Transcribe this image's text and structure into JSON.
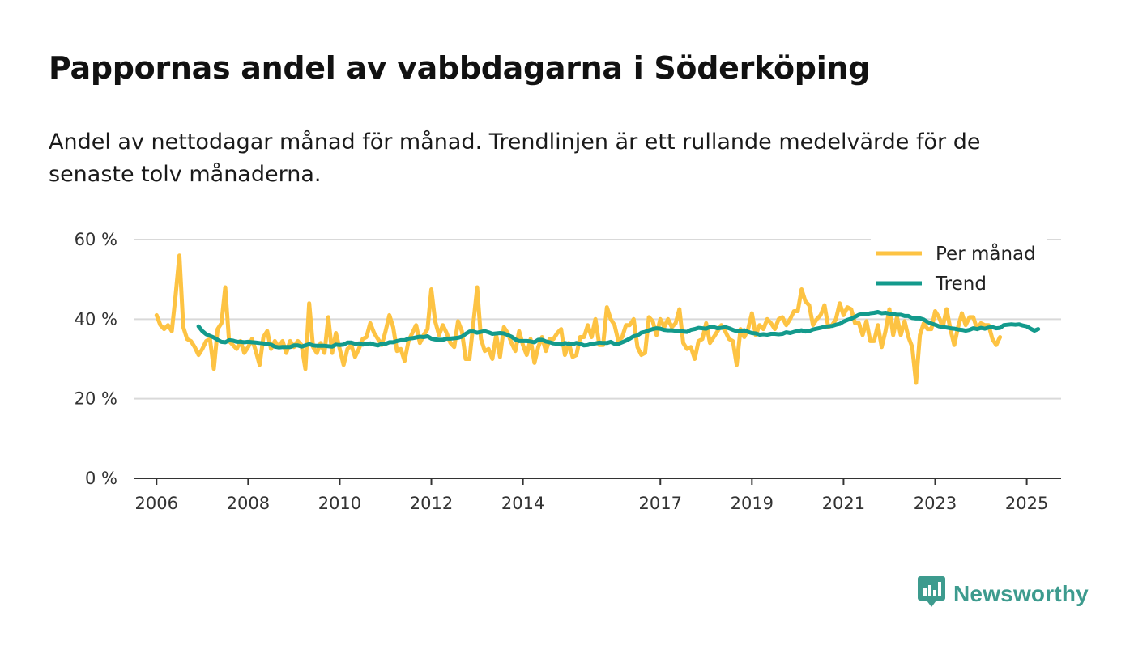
{
  "title": "Pappornas andel av vabbdagarna i Söderköping",
  "subtitle": "Andel av nettodagar månad för månad. Trendlinjen är ett rullande medelvärde för de senaste tolv månaderna.",
  "brand": {
    "name": "Newsworthy",
    "icon": "newsworthy-logo-icon"
  },
  "colors": {
    "monthly": "#fdc343",
    "trend": "#139a8c",
    "grid": "#d9d9d9",
    "axis": "#333333",
    "brand": "#3d9b8e"
  },
  "chart_data": {
    "type": "line",
    "x_unit": "year (decimal)",
    "ylim": [
      0,
      60
    ],
    "xlim": [
      2005.5,
      2025.75
    ],
    "y_ticks": [
      {
        "value": 0,
        "label": "0 %"
      },
      {
        "value": 20,
        "label": "20 %"
      },
      {
        "value": 40,
        "label": "40 %"
      },
      {
        "value": 60,
        "label": "60 %"
      }
    ],
    "x_ticks": [
      {
        "value": 2006,
        "label": "2006"
      },
      {
        "value": 2008,
        "label": "2008"
      },
      {
        "value": 2010,
        "label": "2010"
      },
      {
        "value": 2012,
        "label": "2012"
      },
      {
        "value": 2014,
        "label": "2014"
      },
      {
        "value": 2017,
        "label": "2017"
      },
      {
        "value": 2019,
        "label": "2019"
      },
      {
        "value": 2021,
        "label": "2021"
      },
      {
        "value": 2023,
        "label": "2023"
      },
      {
        "value": 2025,
        "label": "2025"
      }
    ],
    "legend": {
      "position": "top-right",
      "entries": [
        "Per månad",
        "Trend"
      ]
    },
    "series": [
      {
        "name": "Per månad",
        "color": "#fdc343",
        "start": 2006.0,
        "step": 0.083333,
        "values": [
          41,
          38.5,
          37.5,
          38.5,
          37,
          46,
          56,
          38,
          35,
          34.5,
          33,
          31,
          32.5,
          34.5,
          35,
          27.5,
          37.5,
          39,
          48,
          34.5,
          33.5,
          32.5,
          34.5,
          31.5,
          33,
          35,
          32,
          28.5,
          35.5,
          37,
          32.5,
          34.5,
          33,
          34.5,
          31.5,
          34.5,
          33,
          34.5,
          33.5,
          27.5,
          44,
          33,
          31.5,
          34,
          31.5,
          40.5,
          31.5,
          36.5,
          32.5,
          28.5,
          32.5,
          33.5,
          30.5,
          32.5,
          35,
          35.5,
          39,
          36.5,
          35,
          33.5,
          37,
          41,
          38,
          32,
          32.5,
          29.5,
          34.5,
          36.5,
          38.5,
          34,
          36,
          37.5,
          47.5,
          39.5,
          36,
          38.5,
          36.5,
          34,
          33,
          39.5,
          37,
          30,
          30,
          39,
          48,
          35,
          32,
          32.5,
          30,
          36,
          30.5,
          38,
          36.5,
          34,
          32,
          37,
          33.5,
          31,
          35,
          29,
          33,
          35.5,
          32,
          35,
          35,
          36.5,
          37.5,
          31,
          34,
          30.5,
          31,
          35.5,
          35.5,
          38.5,
          35.5,
          40,
          33.5,
          33.5,
          43,
          40,
          38.5,
          34.5,
          35.5,
          38.5,
          38.5,
          40,
          33,
          31,
          31.5,
          40.5,
          39.5,
          36,
          40,
          38,
          40,
          38,
          39,
          42.5,
          34,
          32.5,
          33,
          30,
          34.5,
          35,
          39,
          34,
          35.5,
          37,
          38.5,
          37,
          35,
          34.5,
          28.5,
          37.5,
          35.5,
          37.5,
          41.5,
          36,
          38.5,
          37.5,
          40,
          39,
          37.5,
          40,
          40.5,
          38.5,
          40,
          42,
          42,
          47.5,
          44.5,
          43.5,
          38.5,
          40,
          41,
          43.5,
          38,
          38.5,
          40,
          44,
          41,
          43,
          42.5,
          39,
          39,
          36,
          39.5,
          34.5,
          34.5,
          38.5,
          33,
          37,
          42.5,
          36,
          40.5,
          36,
          39.5,
          35.5,
          33,
          24,
          36,
          39,
          37.5,
          37.5,
          42,
          40.5,
          38,
          42.5,
          37.5,
          33.5,
          38,
          41.5,
          38.5,
          40.5,
          40.5,
          37.5,
          39,
          38.5,
          38.5,
          35,
          33.5,
          35.5
        ]
      },
      {
        "name": "Trend",
        "color": "#139a8c",
        "start": 2006.9167,
        "step": 0.083333,
        "values": [
          38.2,
          37,
          36.2,
          35.8,
          35.4,
          34.8,
          34.3,
          34.2,
          34.7,
          34.6,
          34.3,
          34.3,
          34.2,
          34.3,
          34.2,
          34.1,
          34,
          33.9,
          33.7,
          33.6,
          33.1,
          32.9,
          33,
          33,
          33,
          33.4,
          33.4,
          33.1,
          33.4,
          33.7,
          33.4,
          33.3,
          33.3,
          33.3,
          33.2,
          33.1,
          33.6,
          33.5,
          33.6,
          34.1,
          34.1,
          33.8,
          33.9,
          33.6,
          33.8,
          33.9,
          33.6,
          33.4,
          33.8,
          33.8,
          34.2,
          34.2,
          34.5,
          34.7,
          34.7,
          35.1,
          35.2,
          35.4,
          35.6,
          35.5,
          35.7,
          35.1,
          34.9,
          34.8,
          34.8,
          35.1,
          35.1,
          35.2,
          35.3,
          35.6,
          36.3,
          36.9,
          36.9,
          36.6,
          36.8,
          37,
          36.7,
          36.3,
          36.4,
          36.5,
          36.4,
          36,
          35.6,
          34.9,
          34.5,
          34.5,
          34.5,
          34.4,
          34.2,
          34.8,
          34.8,
          34.4,
          34.2,
          33.9,
          33.8,
          33.6,
          34,
          33.8,
          33.7,
          34,
          33.8,
          33.4,
          33.5,
          33.8,
          33.9,
          34.1,
          34,
          34,
          34.3,
          33.8,
          33.8,
          34.2,
          34.6,
          35.1,
          35.7,
          35.9,
          36.6,
          36.8,
          37.2,
          37.5,
          37.7,
          37.6,
          37.3,
          37.2,
          37.2,
          37.1,
          37.1,
          36.9,
          36.8,
          37.3,
          37.5,
          37.8,
          37.7,
          37.6,
          38,
          38,
          37.7,
          37.8,
          38,
          37.7,
          37.3,
          37,
          37,
          37.2,
          36.8,
          36.5,
          36.4,
          36.1,
          36.2,
          36.1,
          36.3,
          36.3,
          36.2,
          36.3,
          36.7,
          36.5,
          36.8,
          37,
          37.2,
          36.9,
          37,
          37.4,
          37.6,
          37.8,
          38.1,
          38.2,
          38.3,
          38.6,
          38.8,
          39.4,
          39.8,
          40.1,
          40.6,
          41.1,
          41.3,
          41.2,
          41.5,
          41.6,
          41.8,
          41.5,
          41.6,
          41.4,
          41.3,
          41.1,
          41.1,
          40.8,
          40.8,
          40.3,
          40.2,
          40.2,
          39.9,
          39.3,
          38.9,
          38.6,
          38.2,
          38,
          37.9,
          37.7,
          37.6,
          37.4,
          37.3,
          37.1,
          37.3,
          37.7,
          37.5,
          37.8,
          37.6,
          37.9,
          38,
          37.7,
          37.8,
          38.5,
          38.6,
          38.7,
          38.6,
          38.7,
          38.4,
          38.2,
          37.6,
          37.1,
          37.5
        ]
      }
    ]
  }
}
